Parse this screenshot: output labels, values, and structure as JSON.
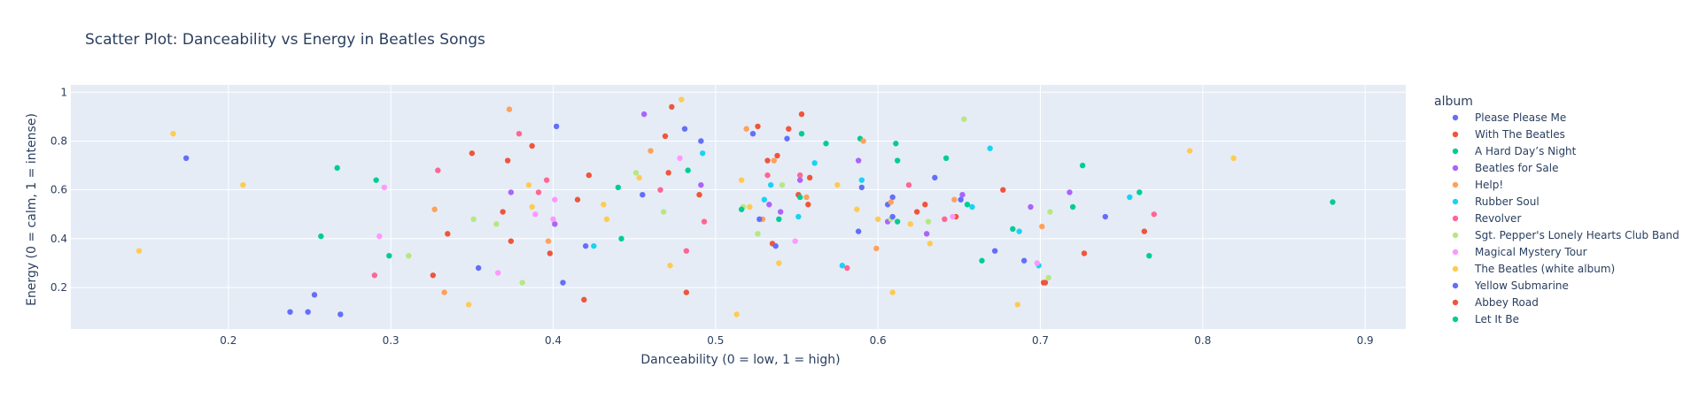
{
  "chart_data": {
    "type": "scatter",
    "title": "Scatter Plot: Danceability vs Energy in Beatles Songs",
    "xlabel": "Danceability (0 = low, 1 = high)",
    "ylabel": "Energy (0 = calm, 1 = intense)",
    "xlim": [
      0.103,
      0.925
    ],
    "ylim": [
      0.03,
      1.03
    ],
    "x_ticks": [
      0.2,
      0.3,
      0.4,
      0.5,
      0.6,
      0.7,
      0.8,
      0.9
    ],
    "x_tick_labels": [
      "0.2",
      "0.3",
      "0.4",
      "0.5",
      "0.6",
      "0.7",
      "0.8",
      "0.9"
    ],
    "y_ticks": [
      0.2,
      0.4,
      0.6,
      0.8,
      1.0
    ],
    "y_tick_labels": [
      "0.2",
      "0.4",
      "0.6",
      "0.8",
      "1"
    ],
    "grid": true,
    "plot_background": "#e5ecf6",
    "legend_title": "album",
    "legend_position": "right",
    "series": [
      {
        "name": "Please Please Me",
        "color": "#636efa",
        "points": [
          [
            0.174,
            0.73
          ],
          [
            0.238,
            0.1
          ],
          [
            0.249,
            0.1
          ],
          [
            0.253,
            0.17
          ],
          [
            0.269,
            0.09
          ],
          [
            0.354,
            0.28
          ],
          [
            0.402,
            0.86
          ],
          [
            0.406,
            0.22
          ],
          [
            0.42,
            0.37
          ],
          [
            0.481,
            0.85
          ],
          [
            0.491,
            0.8
          ],
          [
            0.523,
            0.83
          ],
          [
            0.544,
            0.81
          ],
          [
            0.588,
            0.43
          ],
          [
            0.606,
            0.54
          ],
          [
            0.609,
            0.57
          ],
          [
            0.635,
            0.65
          ],
          [
            0.651,
            0.56
          ],
          [
            0.672,
            0.35
          ],
          [
            0.69,
            0.31
          ],
          [
            0.74,
            0.49
          ]
        ]
      },
      {
        "name": "With The Beatles",
        "color": "#ef553b",
        "points": [
          [
            0.326,
            0.25
          ],
          [
            0.335,
            0.42
          ],
          [
            0.35,
            0.75
          ],
          [
            0.369,
            0.51
          ],
          [
            0.372,
            0.72
          ],
          [
            0.374,
            0.39
          ],
          [
            0.398,
            0.34
          ],
          [
            0.415,
            0.56
          ],
          [
            0.419,
            0.15
          ],
          [
            0.422,
            0.66
          ],
          [
            0.469,
            0.82
          ],
          [
            0.471,
            0.67
          ],
          [
            0.473,
            0.94
          ],
          [
            0.482,
            0.18
          ],
          [
            0.49,
            0.58
          ],
          [
            0.526,
            0.86
          ],
          [
            0.532,
            0.72
          ],
          [
            0.535,
            0.38
          ],
          [
            0.538,
            0.74
          ],
          [
            0.545,
            0.85
          ],
          [
            0.551,
            0.58
          ],
          [
            0.553,
            0.91
          ],
          [
            0.557,
            0.54
          ],
          [
            0.624,
            0.51
          ],
          [
            0.648,
            0.49
          ],
          [
            0.677,
            0.6
          ],
          [
            0.703,
            0.22
          ],
          [
            0.727,
            0.34
          ],
          [
            0.764,
            0.43
          ]
        ]
      },
      {
        "name": "A Hard Day’s Night",
        "color": "#00cc96",
        "points": [
          [
            0.267,
            0.69
          ],
          [
            0.291,
            0.64
          ],
          [
            0.299,
            0.33
          ],
          [
            0.44,
            0.61
          ],
          [
            0.442,
            0.4
          ],
          [
            0.483,
            0.68
          ],
          [
            0.552,
            0.57
          ],
          [
            0.553,
            0.83
          ],
          [
            0.568,
            0.79
          ],
          [
            0.589,
            0.81
          ],
          [
            0.611,
            0.79
          ],
          [
            0.612,
            0.72
          ],
          [
            0.642,
            0.73
          ],
          [
            0.664,
            0.31
          ],
          [
            0.683,
            0.44
          ],
          [
            0.726,
            0.7
          ],
          [
            0.761,
            0.59
          ],
          [
            0.767,
            0.33
          ],
          [
            0.88,
            0.55
          ]
        ]
      },
      {
        "name": "Beatles for Sale",
        "color": "#ab63fa",
        "points": [
          [
            0.374,
            0.59
          ],
          [
            0.401,
            0.46
          ],
          [
            0.456,
            0.91
          ],
          [
            0.491,
            0.62
          ],
          [
            0.533,
            0.54
          ],
          [
            0.54,
            0.51
          ],
          [
            0.552,
            0.64
          ],
          [
            0.588,
            0.72
          ],
          [
            0.606,
            0.47
          ],
          [
            0.63,
            0.42
          ],
          [
            0.652,
            0.58
          ],
          [
            0.694,
            0.53
          ],
          [
            0.718,
            0.59
          ]
        ]
      },
      {
        "name": "Help!",
        "color": "#ffa15a",
        "points": [
          [
            0.327,
            0.52
          ],
          [
            0.333,
            0.18
          ],
          [
            0.373,
            0.93
          ],
          [
            0.397,
            0.39
          ],
          [
            0.46,
            0.76
          ],
          [
            0.519,
            0.85
          ],
          [
            0.529,
            0.48
          ],
          [
            0.536,
            0.72
          ],
          [
            0.556,
            0.57
          ],
          [
            0.591,
            0.8
          ],
          [
            0.599,
            0.36
          ],
          [
            0.608,
            0.55
          ],
          [
            0.647,
            0.56
          ],
          [
            0.701,
            0.45
          ]
        ]
      },
      {
        "name": "Rubber Soul",
        "color": "#19d3f3",
        "points": [
          [
            0.425,
            0.37
          ],
          [
            0.492,
            0.75
          ],
          [
            0.53,
            0.56
          ],
          [
            0.534,
            0.62
          ],
          [
            0.551,
            0.49
          ],
          [
            0.561,
            0.71
          ],
          [
            0.578,
            0.29
          ],
          [
            0.59,
            0.64
          ],
          [
            0.658,
            0.53
          ],
          [
            0.669,
            0.77
          ],
          [
            0.687,
            0.43
          ],
          [
            0.699,
            0.29
          ],
          [
            0.755,
            0.57
          ]
        ]
      },
      {
        "name": "Revolver",
        "color": "#ff6692",
        "points": [
          [
            0.29,
            0.25
          ],
          [
            0.329,
            0.68
          ],
          [
            0.379,
            0.83
          ],
          [
            0.391,
            0.59
          ],
          [
            0.396,
            0.64
          ],
          [
            0.466,
            0.6
          ],
          [
            0.482,
            0.35
          ],
          [
            0.493,
            0.47
          ],
          [
            0.532,
            0.66
          ],
          [
            0.552,
            0.66
          ],
          [
            0.581,
            0.28
          ],
          [
            0.619,
            0.62
          ],
          [
            0.641,
            0.48
          ],
          [
            0.77,
            0.5
          ]
        ]
      },
      {
        "name": "Sgt. Pepper's Lonely Hearts Club Band",
        "color": "#b6e880",
        "points": [
          [
            0.311,
            0.33
          ],
          [
            0.351,
            0.48
          ],
          [
            0.365,
            0.46
          ],
          [
            0.381,
            0.22
          ],
          [
            0.451,
            0.67
          ],
          [
            0.468,
            0.51
          ],
          [
            0.517,
            0.53
          ],
          [
            0.526,
            0.42
          ],
          [
            0.541,
            0.62
          ],
          [
            0.608,
            0.48
          ],
          [
            0.631,
            0.47
          ],
          [
            0.653,
            0.89
          ],
          [
            0.705,
            0.24
          ],
          [
            0.706,
            0.51
          ]
        ]
      },
      {
        "name": "Magical Mystery Tour",
        "color": "#ff97ff",
        "points": [
          [
            0.293,
            0.41
          ],
          [
            0.296,
            0.61
          ],
          [
            0.366,
            0.26
          ],
          [
            0.389,
            0.5
          ],
          [
            0.4,
            0.48
          ],
          [
            0.401,
            0.56
          ],
          [
            0.478,
            0.73
          ],
          [
            0.549,
            0.39
          ],
          [
            0.646,
            0.49
          ],
          [
            0.698,
            0.3
          ]
        ]
      },
      {
        "name": "The Beatles (white album)",
        "color": "#fecb52",
        "points": [
          [
            0.145,
            0.35
          ],
          [
            0.166,
            0.83
          ],
          [
            0.209,
            0.62
          ],
          [
            0.348,
            0.13
          ],
          [
            0.385,
            0.62
          ],
          [
            0.387,
            0.53
          ],
          [
            0.431,
            0.54
          ],
          [
            0.433,
            0.48
          ],
          [
            0.453,
            0.65
          ],
          [
            0.472,
            0.29
          ],
          [
            0.479,
            0.97
          ],
          [
            0.513,
            0.09
          ],
          [
            0.516,
            0.64
          ],
          [
            0.521,
            0.53
          ],
          [
            0.539,
            0.3
          ],
          [
            0.575,
            0.62
          ],
          [
            0.587,
            0.52
          ],
          [
            0.6,
            0.48
          ],
          [
            0.62,
            0.46
          ],
          [
            0.632,
            0.38
          ],
          [
            0.609,
            0.18
          ],
          [
            0.686,
            0.13
          ],
          [
            0.792,
            0.76
          ],
          [
            0.819,
            0.73
          ]
        ]
      },
      {
        "name": "Yellow Submarine",
        "color": "#636efa",
        "points": [
          [
            0.455,
            0.58
          ],
          [
            0.527,
            0.48
          ],
          [
            0.537,
            0.37
          ],
          [
            0.59,
            0.61
          ],
          [
            0.609,
            0.49
          ]
        ]
      },
      {
        "name": "Abbey Road",
        "color": "#ef553b",
        "points": [
          [
            0.387,
            0.78
          ],
          [
            0.558,
            0.65
          ],
          [
            0.629,
            0.54
          ],
          [
            0.702,
            0.22
          ]
        ]
      },
      {
        "name": "Let It Be",
        "color": "#00cc96",
        "points": [
          [
            0.257,
            0.41
          ],
          [
            0.516,
            0.52
          ],
          [
            0.539,
            0.48
          ],
          [
            0.612,
            0.47
          ],
          [
            0.655,
            0.54
          ],
          [
            0.72,
            0.53
          ]
        ]
      }
    ]
  }
}
